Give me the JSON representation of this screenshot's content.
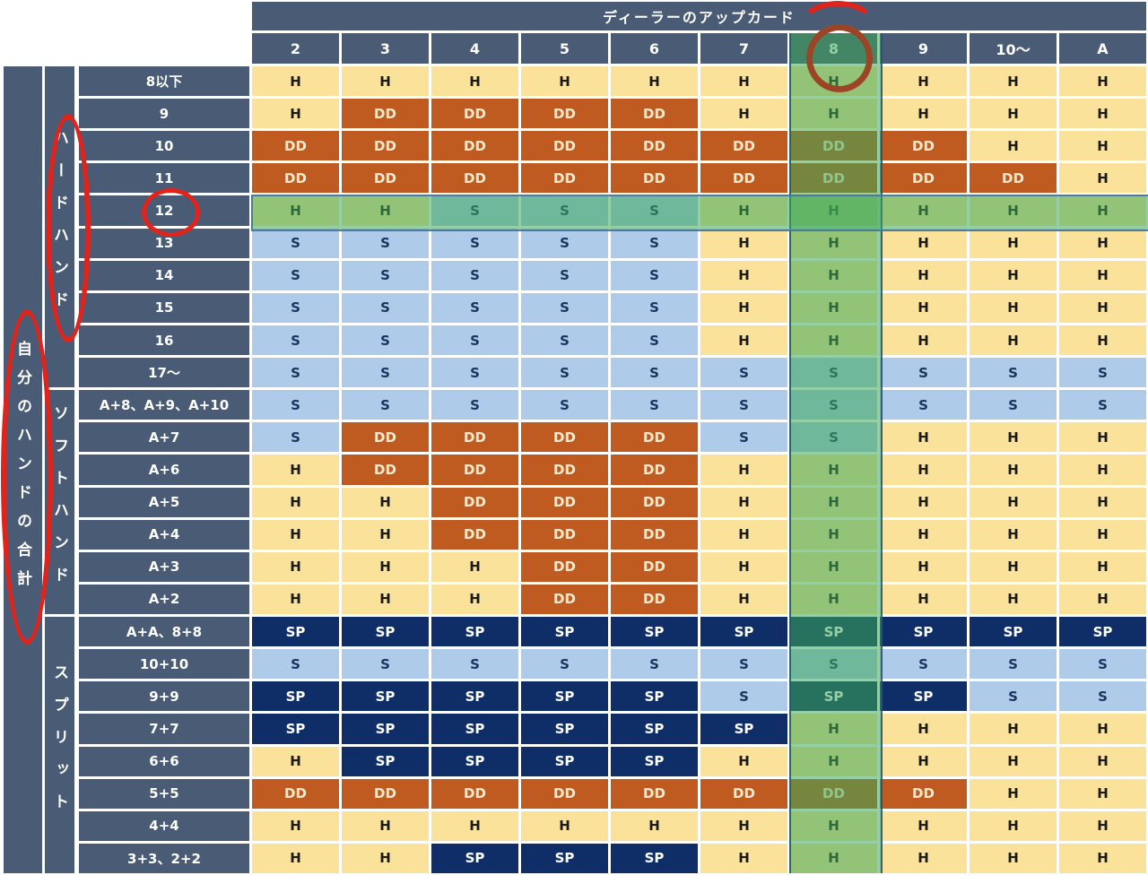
{
  "chart_data": {
    "type": "table",
    "title": "ディーラーのアップカード",
    "left_axis_label": "自分のハンドの合計",
    "sections": [
      {
        "name": "ハードハンド"
      },
      {
        "name": "ソフトハンド"
      },
      {
        "name": "スプリット"
      }
    ],
    "columns": [
      "2",
      "3",
      "4",
      "5",
      "6",
      "7",
      "8",
      "9",
      "10〜",
      "A"
    ],
    "highlighted_column": "8",
    "highlighted_row": "12",
    "cell_codes": [
      "H",
      "S",
      "DD",
      "SP"
    ],
    "rows": [
      {
        "section": 0,
        "label": "8以下",
        "cells": [
          "H",
          "H",
          "H",
          "H",
          "H",
          "H",
          "H",
          "H",
          "H",
          "H"
        ]
      },
      {
        "section": 0,
        "label": "9",
        "cells": [
          "H",
          "DD",
          "DD",
          "DD",
          "DD",
          "H",
          "H",
          "H",
          "H",
          "H"
        ]
      },
      {
        "section": 0,
        "label": "10",
        "cells": [
          "DD",
          "DD",
          "DD",
          "DD",
          "DD",
          "DD",
          "DD",
          "DD",
          "H",
          "H"
        ]
      },
      {
        "section": 0,
        "label": "11",
        "cells": [
          "DD",
          "DD",
          "DD",
          "DD",
          "DD",
          "DD",
          "DD",
          "DD",
          "DD",
          "H"
        ]
      },
      {
        "section": 0,
        "label": "12",
        "cells": [
          "H",
          "H",
          "S",
          "S",
          "S",
          "H",
          "H",
          "H",
          "H",
          "H"
        ]
      },
      {
        "section": 0,
        "label": "13",
        "cells": [
          "S",
          "S",
          "S",
          "S",
          "S",
          "H",
          "H",
          "H",
          "H",
          "H"
        ]
      },
      {
        "section": 0,
        "label": "14",
        "cells": [
          "S",
          "S",
          "S",
          "S",
          "S",
          "H",
          "H",
          "H",
          "H",
          "H"
        ]
      },
      {
        "section": 0,
        "label": "15",
        "cells": [
          "S",
          "S",
          "S",
          "S",
          "S",
          "H",
          "H",
          "H",
          "H",
          "H"
        ]
      },
      {
        "section": 0,
        "label": "16",
        "cells": [
          "S",
          "S",
          "S",
          "S",
          "S",
          "H",
          "H",
          "H",
          "H",
          "H"
        ]
      },
      {
        "section": 0,
        "label": "17〜",
        "cells": [
          "S",
          "S",
          "S",
          "S",
          "S",
          "S",
          "S",
          "S",
          "S",
          "S"
        ]
      },
      {
        "section": 1,
        "label": "A+8、A+9、A+10",
        "cells": [
          "S",
          "S",
          "S",
          "S",
          "S",
          "S",
          "S",
          "S",
          "S",
          "S"
        ]
      },
      {
        "section": 1,
        "label": "A+7",
        "cells": [
          "S",
          "DD",
          "DD",
          "DD",
          "DD",
          "S",
          "S",
          "H",
          "H",
          "H"
        ]
      },
      {
        "section": 1,
        "label": "A+6",
        "cells": [
          "H",
          "DD",
          "DD",
          "DD",
          "DD",
          "H",
          "H",
          "H",
          "H",
          "H"
        ]
      },
      {
        "section": 1,
        "label": "A+5",
        "cells": [
          "H",
          "H",
          "DD",
          "DD",
          "DD",
          "H",
          "H",
          "H",
          "H",
          "H"
        ]
      },
      {
        "section": 1,
        "label": "A+4",
        "cells": [
          "H",
          "H",
          "DD",
          "DD",
          "DD",
          "H",
          "H",
          "H",
          "H",
          "H"
        ]
      },
      {
        "section": 1,
        "label": "A+3",
        "cells": [
          "H",
          "H",
          "H",
          "DD",
          "DD",
          "H",
          "H",
          "H",
          "H",
          "H"
        ]
      },
      {
        "section": 1,
        "label": "A+2",
        "cells": [
          "H",
          "H",
          "H",
          "DD",
          "DD",
          "H",
          "H",
          "H",
          "H",
          "H"
        ]
      },
      {
        "section": 2,
        "label": "A+A、8+8",
        "cells": [
          "SP",
          "SP",
          "SP",
          "SP",
          "SP",
          "SP",
          "SP",
          "SP",
          "SP",
          "SP"
        ]
      },
      {
        "section": 2,
        "label": "10+10",
        "cells": [
          "S",
          "S",
          "S",
          "S",
          "S",
          "S",
          "S",
          "S",
          "S",
          "S"
        ]
      },
      {
        "section": 2,
        "label": "9+9",
        "cells": [
          "SP",
          "SP",
          "SP",
          "SP",
          "SP",
          "S",
          "SP",
          "SP",
          "S",
          "S"
        ]
      },
      {
        "section": 2,
        "label": "7+7",
        "cells": [
          "SP",
          "SP",
          "SP",
          "SP",
          "SP",
          "SP",
          "H",
          "H",
          "H",
          "H"
        ]
      },
      {
        "section": 2,
        "label": "6+6",
        "cells": [
          "H",
          "SP",
          "SP",
          "SP",
          "SP",
          "H",
          "H",
          "H",
          "H",
          "H"
        ]
      },
      {
        "section": 2,
        "label": "5+5",
        "cells": [
          "DD",
          "DD",
          "DD",
          "DD",
          "DD",
          "DD",
          "DD",
          "DD",
          "H",
          "H"
        ]
      },
      {
        "section": 2,
        "label": "4+4",
        "cells": [
          "H",
          "H",
          "H",
          "H",
          "H",
          "H",
          "H",
          "H",
          "H",
          "H"
        ]
      },
      {
        "section": 2,
        "label": "3+3、2+2",
        "cells": [
          "H",
          "H",
          "SP",
          "SP",
          "SP",
          "H",
          "H",
          "H",
          "H",
          "H"
        ]
      }
    ]
  },
  "colors": {
    "header_slate": "#4a5b76",
    "hit_bg": "#fbe29b",
    "stand_bg": "#aecbea",
    "double_bg": "#bf5b21",
    "split_bg": "#0f2d66",
    "highlight_overlay": "rgba(60,170,90,0.55)",
    "annotation_red": "#e0241c",
    "annotation_dark_red": "#9c4526"
  },
  "annotations": [
    {
      "name": "ellipse-around-hard-hand-label"
    },
    {
      "name": "ellipse-around-left-axis-label"
    },
    {
      "name": "circle-around-row-12"
    },
    {
      "name": "circle-around-column-8"
    }
  ]
}
